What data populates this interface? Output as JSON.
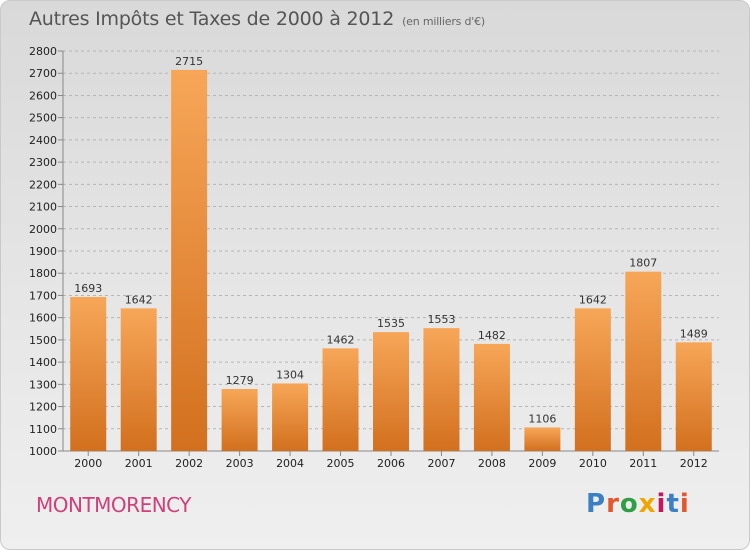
{
  "header": {
    "title": "Autres Impôts et Taxes de 2000 à 2012",
    "subtitle": "(en milliers d'€)"
  },
  "footer": {
    "city": "MONTMORENCY",
    "logo_text": "Proxiti",
    "logo_colors": [
      "#3b7fc4",
      "#e4572e",
      "#2f9e44",
      "#f0a500",
      "#c2185b",
      "#3b7fc4",
      "#e4572e"
    ]
  },
  "colors": {
    "bar_light": "#f7a658",
    "bar_dark": "#d2701e",
    "grid": "#b5b5b5",
    "axis": "#888888"
  },
  "chart_data": {
    "type": "bar",
    "title": "Autres Impôts et Taxes de 2000 à 2012",
    "subtitle": "(en milliers d'€)",
    "xlabel": "",
    "ylabel": "",
    "categories": [
      "2000",
      "2001",
      "2002",
      "2003",
      "2004",
      "2005",
      "2006",
      "2007",
      "2008",
      "2009",
      "2010",
      "2011",
      "2012"
    ],
    "values": [
      1693,
      1642,
      2715,
      1279,
      1304,
      1462,
      1535,
      1553,
      1482,
      1106,
      1642,
      1807,
      1489
    ],
    "ylim": [
      1000,
      2800
    ],
    "yticks": [
      1000,
      1100,
      1200,
      1300,
      1400,
      1500,
      1600,
      1700,
      1800,
      1900,
      2000,
      2100,
      2200,
      2300,
      2400,
      2500,
      2600,
      2700,
      2800
    ],
    "grid": "horizontal dashed",
    "legend": "none"
  }
}
